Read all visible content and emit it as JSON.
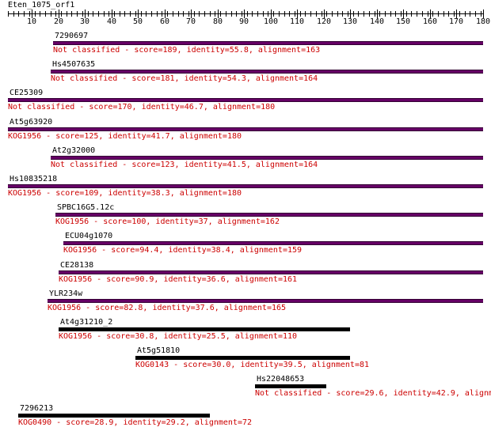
{
  "query": {
    "name": "Eten_1075_orf1",
    "length": 180
  },
  "axis": {
    "ticks": [
      10,
      20,
      30,
      40,
      50,
      60,
      70,
      80,
      90,
      100,
      110,
      120,
      130,
      140,
      150,
      160,
      170,
      180
    ]
  },
  "colors": {
    "full_bar": "#660066",
    "full_bar_edge": "#330033",
    "partial_bar": "#000000",
    "description": "#cc0000"
  },
  "hits": [
    {
      "name": "7290697",
      "description": "Not classified - score=189, identity=55.8, alignment=163",
      "start": 18,
      "end": 180,
      "style": "full"
    },
    {
      "name": "Hs4507635",
      "description": "Not classified - score=181, identity=54.3, alignment=164",
      "start": 17,
      "end": 180,
      "style": "full"
    },
    {
      "name": "CE25309",
      "description": "Not classified - score=170, identity=46.7, alignment=180",
      "start": 1,
      "end": 180,
      "style": "full"
    },
    {
      "name": "At5g63920",
      "description": "KOG1956 - score=125, identity=41.7, alignment=180",
      "start": 1,
      "end": 180,
      "style": "full"
    },
    {
      "name": "At2g32000",
      "description": "Not classified - score=123, identity=41.5, alignment=164",
      "start": 17,
      "end": 180,
      "style": "full"
    },
    {
      "name": "Hs10835218",
      "description": "KOG1956 - score=109, identity=38.3, alignment=180",
      "start": 1,
      "end": 180,
      "style": "full"
    },
    {
      "name": "SPBC16G5.12c",
      "description": "KOG1956 - score=100, identity=37, alignment=162",
      "start": 19,
      "end": 180,
      "style": "full"
    },
    {
      "name": "ECU04g1070",
      "description": "KOG1956 - score=94.4, identity=38.4, alignment=159",
      "start": 22,
      "end": 180,
      "style": "full"
    },
    {
      "name": "CE28138",
      "description": "KOG1956 - score=90.9, identity=36.6, alignment=161",
      "start": 20,
      "end": 180,
      "style": "full"
    },
    {
      "name": "YLR234w",
      "description": "KOG1956 - score=82.8, identity=37.6, alignment=165",
      "start": 16,
      "end": 180,
      "style": "full"
    },
    {
      "name": "At4g31210_2",
      "description": "KOG1956 - score=30.8, identity=25.5, alignment=110",
      "start": 20,
      "end": 130,
      "style": "partial"
    },
    {
      "name": "At5g51810",
      "description": "KOG0143 - score=30.0, identity=39.5, alignment=81",
      "start": 49,
      "end": 130,
      "style": "partial"
    },
    {
      "name": "Hs22048653",
      "description": "Not classified - score=29.6, identity=42.9, alignm",
      "start": 94,
      "end": 121,
      "style": "partial"
    },
    {
      "name": "7296213",
      "description": "KOG0490 - score=28.9, identity=29.2, alignment=72",
      "start": 5,
      "end": 77,
      "style": "partial"
    }
  ]
}
